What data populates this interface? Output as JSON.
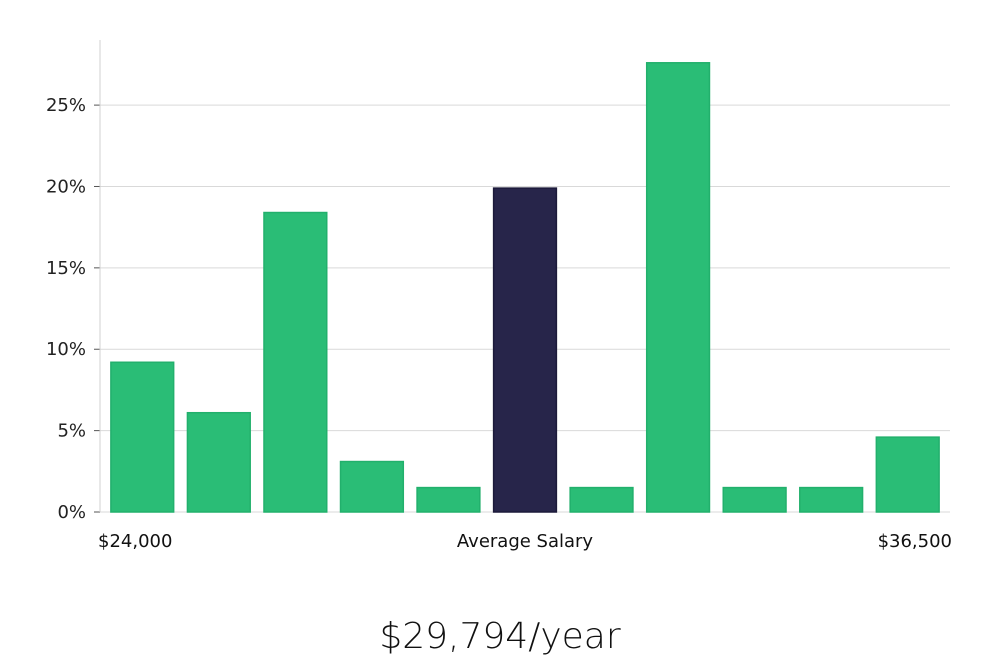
{
  "chart_data": {
    "type": "bar",
    "categories": [
      "",
      "",
      "",
      "",
      "",
      "",
      "",
      "",
      "",
      "",
      ""
    ],
    "values": [
      9.2,
      6.1,
      18.4,
      3.1,
      1.5,
      19.9,
      1.5,
      27.6,
      1.5,
      1.5,
      4.6
    ],
    "highlight_index": 5,
    "ylim": [
      0,
      29
    ],
    "yticks": [
      0,
      5,
      10,
      15,
      20,
      25
    ],
    "ytick_labels": [
      "0%",
      "5%",
      "10%",
      "15%",
      "20%",
      "25%"
    ],
    "x_labels": {
      "left": "$24,000",
      "center": "Average Salary",
      "right": "$36,500"
    },
    "grid": true,
    "colors": {
      "bar": "#2abd76",
      "highlight": "#27254a",
      "grid": "#d9d9d9",
      "axis": "#d0d0d0"
    }
  },
  "summary": {
    "average_salary": "$29,794/year"
  }
}
